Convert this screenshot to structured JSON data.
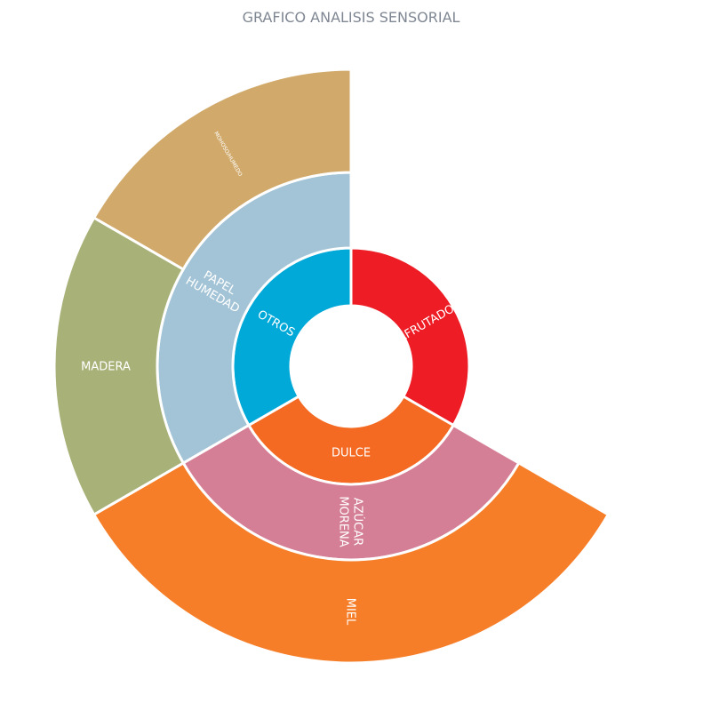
{
  "chart_data": {
    "type": "sunburst",
    "title": "GRAFICO ANALISIS SENSORIAL",
    "rings": [
      [
        {
          "id": "afrutado",
          "label": "AFRUTADO",
          "lines": [
            "AFRUTADO"
          ],
          "value": 1,
          "color": "#ee1c25",
          "span": [
            0,
            120
          ]
        },
        {
          "id": "dulce",
          "label": "DULCE",
          "lines": [
            "DULCE"
          ],
          "value": 1,
          "color": "#f46a22",
          "span": [
            120,
            240
          ]
        },
        {
          "id": "otros",
          "label": "OTROS",
          "lines": [
            "OTROS"
          ],
          "value": 1,
          "color": "#00a9d8",
          "span": [
            240,
            360
          ]
        }
      ],
      [
        {
          "id": "azucar-morena",
          "label": "AZÚCAR MORENA",
          "lines": [
            "AZÚCAR",
            "MORENA"
          ],
          "value": 1,
          "parent": "DULCE",
          "color": "#d57f96",
          "span": [
            120,
            240
          ]
        },
        {
          "id": "papel-humedad",
          "label": "PAPEL HUMEDAD",
          "lines": [
            "PAPEL",
            "HUMEDAD"
          ],
          "value": 1,
          "parent": "OTROS",
          "color": "#a3c4d7",
          "span": [
            240,
            360
          ]
        }
      ],
      [
        {
          "id": "miel",
          "label": "MIEL",
          "lines": [
            "MIEL"
          ],
          "value": 1,
          "parent": "AZÚCAR MORENA",
          "color": "#f67e29",
          "span": [
            120,
            240
          ]
        },
        {
          "id": "madera",
          "label": "MADERA",
          "lines": [
            "MADERA"
          ],
          "value": 1,
          "parent": "PAPEL HUMEDAD",
          "color": "#a8b278",
          "span": [
            240,
            300
          ]
        },
        {
          "id": "mohoso-humedo",
          "label": "MOHOSO/HUMEDO",
          "lines": [
            "MOHOSO/HUMEDO"
          ],
          "value": 1,
          "parent": "PAPEL HUMEDAD",
          "color": "#d1aa6b",
          "span": [
            300,
            360
          ]
        }
      ]
    ]
  }
}
